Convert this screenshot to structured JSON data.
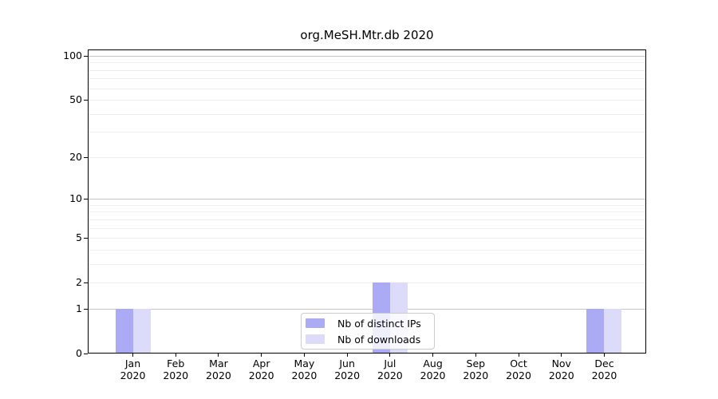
{
  "chart_data": {
    "type": "bar",
    "title": "org.MeSH.Mtr.db 2020",
    "categories": [
      "Jan",
      "Feb",
      "Mar",
      "Apr",
      "May",
      "Jun",
      "Jul",
      "Aug",
      "Sep",
      "Oct",
      "Nov",
      "Dec"
    ],
    "x_axis": {
      "year": "2020"
    },
    "series": [
      {
        "name": "Nb of distinct IPs",
        "color": "#aaaaf5",
        "values": [
          1,
          0,
          0,
          0,
          0,
          0,
          2,
          0,
          0,
          0,
          0,
          1
        ]
      },
      {
        "name": "Nb of downloads",
        "color": "#dcdcfa",
        "values": [
          1,
          0,
          0,
          0,
          0,
          0,
          2,
          0,
          0,
          0,
          0,
          1
        ]
      }
    ],
    "y_axis": {
      "scale": "log10(1+value)",
      "tick_values": [
        0,
        1,
        2,
        5,
        10,
        20,
        50,
        100
      ],
      "major_gridline_values": [
        1,
        10,
        100
      ],
      "minor_gridline_values": [
        2,
        3,
        4,
        5,
        6,
        7,
        8,
        9,
        20,
        30,
        40,
        50,
        60,
        70,
        80,
        90
      ],
      "max_value": 100
    },
    "legend": {
      "position": "lower center",
      "entries": [
        "Nb of distinct IPs",
        "Nb of downloads"
      ]
    },
    "grid": true,
    "colors": {
      "major_grid": "#c6c6c6",
      "minor_grid": "#ededed",
      "axis": "#000000",
      "background": "#ffffff",
      "text": "#000000"
    }
  }
}
